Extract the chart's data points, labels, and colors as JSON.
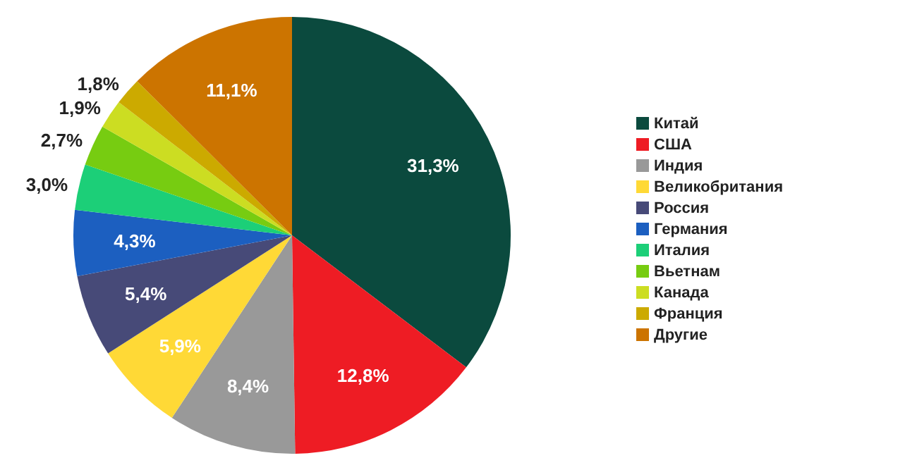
{
  "chart_data": {
    "type": "pie",
    "categories": [
      "Китай",
      "США",
      "Индия",
      "Великобритания",
      "Россия",
      "Германия",
      "Италия",
      "Вьетнам",
      "Канада",
      "Франция",
      "Другие"
    ],
    "values": [
      31.3,
      12.8,
      8.4,
      5.9,
      5.4,
      4.3,
      3.0,
      2.7,
      1.9,
      1.8,
      11.1
    ],
    "value_labels": [
      "31,3%",
      "12,8%",
      "8,4%",
      "5,9%",
      "5,4%",
      "4,3%",
      "3,0%",
      "2,7%",
      "1,9%",
      "1,8%",
      "11,1%"
    ],
    "colors": [
      "#0b4a3e",
      "#ee1c24",
      "#999999",
      "#ffd936",
      "#474a78",
      "#1c5fc0",
      "#1ccf78",
      "#77cc11",
      "#ccdd22",
      "#ccaa00",
      "#cc7400"
    ],
    "legend": "right"
  }
}
